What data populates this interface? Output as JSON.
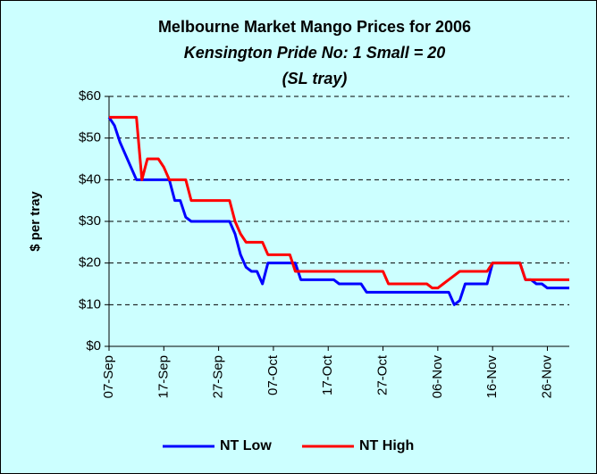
{
  "chart_data": {
    "type": "line",
    "title": "Melbourne Market Mango Prices for 2006",
    "subtitle": [
      "Kensington Pride No: 1 Small = 20",
      "(SL tray)"
    ],
    "y_label": "$ per tray",
    "x": [
      0,
      1,
      2,
      3,
      4,
      5,
      6,
      7,
      8,
      9,
      10,
      11,
      12,
      13,
      14,
      15,
      16,
      17,
      18,
      19,
      20,
      21,
      22,
      23,
      24,
      25,
      26,
      27,
      28,
      29,
      30,
      31,
      32,
      33,
      34,
      35,
      36,
      37,
      38,
      39,
      40,
      41,
      42,
      43,
      44,
      45,
      46,
      47,
      48,
      49,
      50,
      51,
      52,
      53,
      54,
      55,
      56,
      57,
      58,
      59,
      60,
      61,
      62,
      63,
      64,
      65,
      66,
      67,
      68,
      69,
      70,
      71,
      72,
      73,
      74,
      75,
      76,
      77,
      78,
      79,
      80,
      81,
      82,
      83,
      84
    ],
    "xlim": [
      0,
      84
    ],
    "xticks": [
      {
        "value": 0,
        "label": "07-Sep"
      },
      {
        "value": 10,
        "label": "17-Sep"
      },
      {
        "value": 20,
        "label": "27-Sep"
      },
      {
        "value": 30,
        "label": "07-Oct"
      },
      {
        "value": 40,
        "label": "17-Oct"
      },
      {
        "value": 50,
        "label": "27-Oct"
      },
      {
        "value": 60,
        "label": "06-Nov"
      },
      {
        "value": 70,
        "label": "16-Nov"
      },
      {
        "value": 80,
        "label": "26-Nov"
      }
    ],
    "ylim": [
      0,
      60
    ],
    "yticks": [
      {
        "value": 0,
        "label": "$0"
      },
      {
        "value": 10,
        "label": "$10"
      },
      {
        "value": 20,
        "label": "$20"
      },
      {
        "value": 30,
        "label": "$30"
      },
      {
        "value": 40,
        "label": "$40"
      },
      {
        "value": 50,
        "label": "$50"
      },
      {
        "value": 60,
        "label": "$60"
      }
    ],
    "grid": true,
    "legend": "bottom",
    "series": [
      {
        "name": "NT Low",
        "color": "#0000ff",
        "values": [
          55,
          53,
          49,
          46,
          43,
          40,
          40,
          40,
          40,
          40,
          40,
          40,
          35,
          35,
          31,
          30,
          30,
          30,
          30,
          30,
          30,
          30,
          30,
          27,
          22,
          19,
          18,
          18,
          15,
          20,
          20,
          20,
          20,
          20,
          20,
          16,
          16,
          16,
          16,
          16,
          16,
          16,
          15,
          15,
          15,
          15,
          15,
          13,
          13,
          13,
          13,
          13,
          13,
          13,
          13,
          13,
          13,
          13,
          13,
          13,
          13,
          13,
          13,
          10,
          11,
          15,
          15,
          15,
          15,
          15,
          20,
          20,
          20,
          20,
          20,
          20,
          16,
          16,
          15,
          15,
          14,
          14,
          14,
          14,
          14
        ]
      },
      {
        "name": "NT High",
        "color": "#ff0000",
        "values": [
          55,
          55,
          55,
          55,
          55,
          55,
          40,
          45,
          45,
          45,
          43,
          40,
          40,
          40,
          40,
          35,
          35,
          35,
          35,
          35,
          35,
          35,
          35,
          30,
          27,
          25,
          25,
          25,
          25,
          22,
          22,
          22,
          22,
          22,
          18,
          18,
          18,
          18,
          18,
          18,
          18,
          18,
          18,
          18,
          18,
          18,
          18,
          18,
          18,
          18,
          18,
          15,
          15,
          15,
          15,
          15,
          15,
          15,
          15,
          14,
          14,
          15,
          16,
          17,
          18,
          18,
          18,
          18,
          18,
          18,
          20,
          20,
          20,
          20,
          20,
          20,
          16,
          16,
          16,
          16,
          16,
          16,
          16,
          16,
          16
        ]
      }
    ]
  }
}
